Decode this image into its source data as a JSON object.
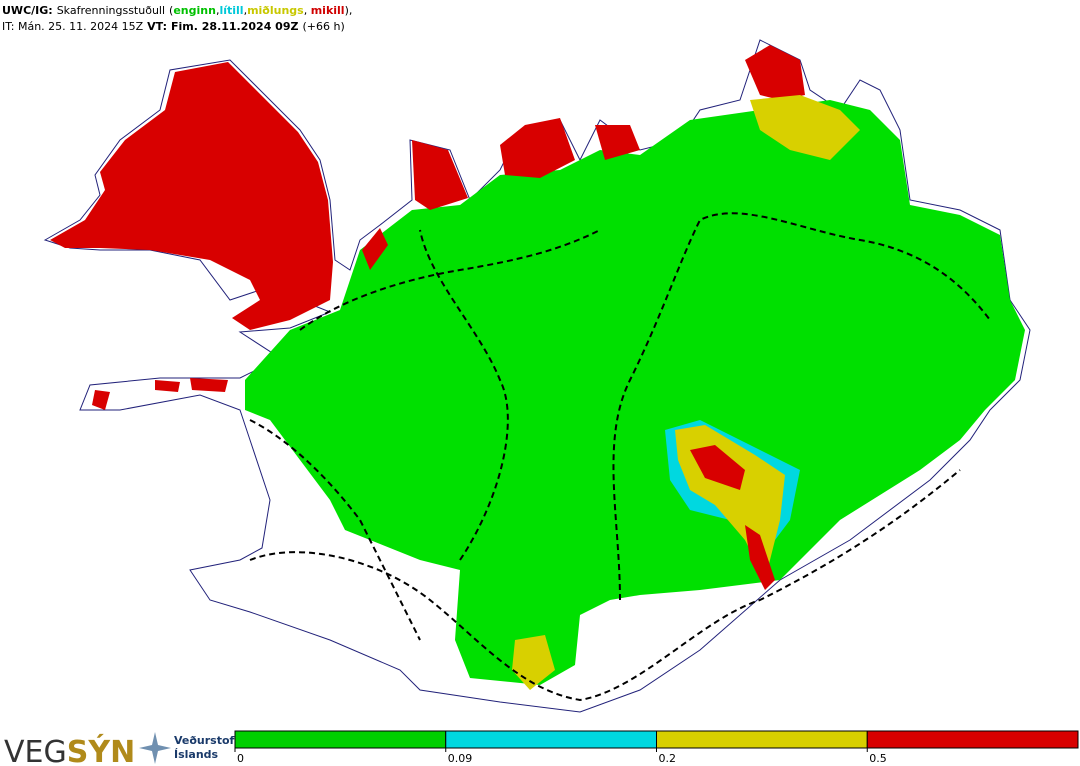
{
  "header": {
    "product": "UWC/IG:",
    "title": "Skafrenningsstuðull",
    "classes": [
      {
        "label": "enginn",
        "color": "#00c000"
      },
      {
        "label": "lítill",
        "color": "#00c8d8"
      },
      {
        "label": "miðlungs",
        "color": "#c8c800"
      },
      {
        "label": "mikill",
        "color": "#d00000"
      }
    ],
    "punctuation": [
      "(",
      ",",
      ",",
      ", ",
      "),"
    ],
    "issue_time": "IT: Mán. 25. 11. 2024 15Z",
    "valid_label": "VT:",
    "valid_time": "Fim. 28.11.2024 09Z",
    "lead": "(+66 h)"
  },
  "legend": {
    "ticks": [
      0,
      0.09,
      0.2,
      0.5
    ],
    "colors": [
      "#00d000",
      "#00d8e0",
      "#d8d000",
      "#d80000"
    ]
  },
  "logos": {
    "vegsyn_a": "VEG",
    "vegsyn_b": "SÝN",
    "vedurstofa": "Veðurstofa",
    "islands": "Íslands"
  }
}
